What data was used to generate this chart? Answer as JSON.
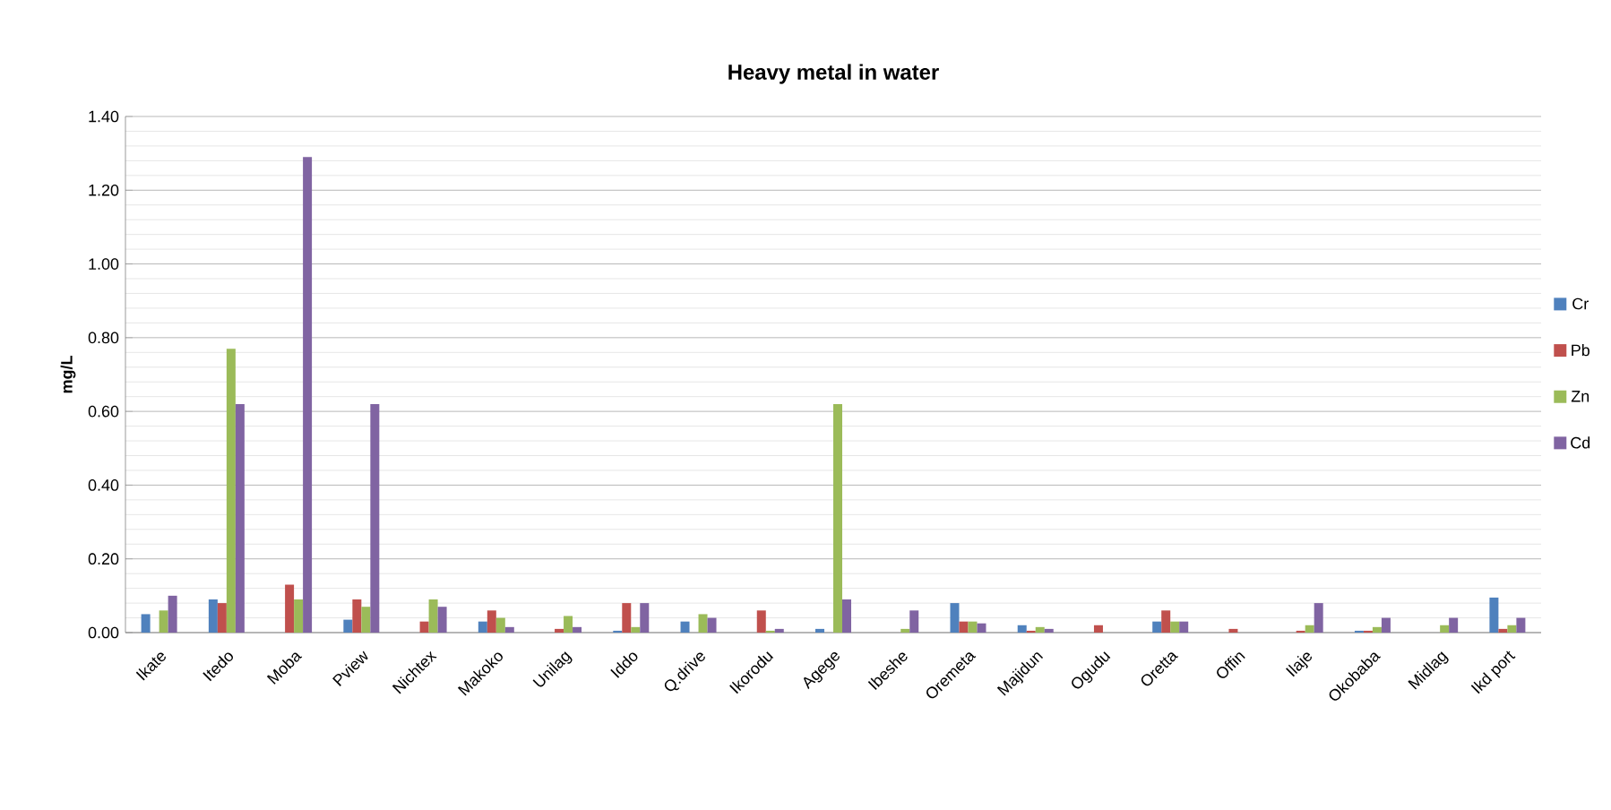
{
  "chart_data": {
    "type": "bar",
    "title": "Heavy metal in water",
    "ylabel": "mg/L",
    "categories": [
      "Ikate",
      "Itedo",
      "Moba",
      "Pview",
      "Nichtex",
      "Makoko",
      "Unilag",
      "Iddo",
      "Q.drive",
      "Ikorodu",
      "Agege",
      "Ibeshe",
      "Oremeta",
      "Majidun",
      "Ogudu",
      "Oretta",
      "Offin",
      "Ilaje",
      "Okobaba",
      "Midlag",
      "Ikd port"
    ],
    "series": [
      {
        "name": "Cr",
        "color": "#4f81bd",
        "values": [
          0.05,
          0.09,
          0,
          0.035,
          0,
          0.03,
          0,
          0.005,
          0.03,
          0,
          0.01,
          0,
          0.08,
          0.02,
          0,
          0.03,
          0,
          0,
          0.005,
          0,
          0.095
        ]
      },
      {
        "name": "Pb",
        "color": "#c0504d",
        "values": [
          0,
          0.08,
          0.13,
          0.09,
          0.03,
          0.06,
          0.01,
          0.08,
          0,
          0.06,
          0,
          0,
          0.03,
          0.005,
          0.02,
          0.06,
          0.01,
          0.005,
          0.005,
          0,
          0.01
        ]
      },
      {
        "name": "Zn",
        "color": "#9bbb59",
        "values": [
          0.06,
          0.77,
          0.09,
          0.07,
          0.09,
          0.04,
          0.045,
          0.015,
          0.05,
          0.005,
          0.62,
          0.01,
          0.03,
          0.015,
          0,
          0.03,
          0,
          0.02,
          0.015,
          0.02,
          0.02
        ]
      },
      {
        "name": "Cd",
        "color": "#8064a2",
        "values": [
          0.1,
          0.62,
          1.29,
          0.62,
          0.07,
          0.015,
          0.015,
          0.08,
          0.04,
          0.01,
          0.09,
          0.06,
          0.025,
          0.01,
          0,
          0.03,
          0,
          0.08,
          0.04,
          0.04,
          0.04
        ]
      }
    ],
    "ylim": [
      0,
      1.4
    ],
    "yticks": [
      {
        "value": 0,
        "label": "0.00"
      },
      {
        "value": 0.2,
        "label": "0.20"
      },
      {
        "value": 0.4,
        "label": "0.40"
      },
      {
        "value": 0.6,
        "label": "0.60"
      },
      {
        "value": 0.8,
        "label": "0.80"
      },
      {
        "value": 1.0,
        "label": "1.00"
      },
      {
        "value": 1.2,
        "label": "1.20"
      },
      {
        "value": 1.4,
        "label": "1.40"
      }
    ],
    "grid": true,
    "legend": "right"
  }
}
